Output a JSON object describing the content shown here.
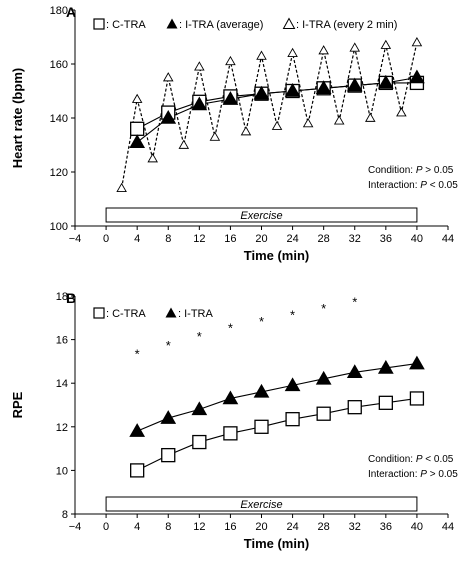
{
  "chart_data": [
    {
      "type": "line",
      "panel_label": "A",
      "xlabel": "Time (min)",
      "ylabel": "Heart rate (bpm)",
      "xlim": [
        -4,
        44
      ],
      "ylim": [
        100,
        180
      ],
      "x_ticks": [
        "−4",
        "0",
        "4",
        "8",
        "12",
        "16",
        "20",
        "24",
        "28",
        "32",
        "36",
        "40",
        "44"
      ],
      "y_ticks": [
        "100",
        "120",
        "140",
        "160",
        "180"
      ],
      "legend": [
        {
          "symbol": "□",
          "label": ": C-TRA"
        },
        {
          "symbol": "▲",
          "label": ": I-TRA (average)"
        },
        {
          "symbol": "△",
          "label": ": I-TRA (every 2 min)"
        }
      ],
      "series": [
        {
          "name": "C-TRA",
          "marker": "open-square",
          "x": [
            4,
            8,
            12,
            16,
            20,
            24,
            28,
            32,
            36,
            40
          ],
          "values": [
            136,
            142,
            146,
            148,
            149,
            150,
            151,
            152,
            153,
            153
          ]
        },
        {
          "name": "I-TRA (average)",
          "marker": "filled-triangle",
          "x": [
            4,
            8,
            12,
            16,
            20,
            24,
            28,
            32,
            36,
            40
          ],
          "values": [
            131,
            140,
            145,
            147,
            149,
            150,
            151,
            152,
            153,
            155
          ]
        },
        {
          "name": "I-TRA (every 2 min)",
          "marker": "open-triangle",
          "dashed": true,
          "x": [
            2,
            4,
            6,
            8,
            10,
            12,
            14,
            16,
            18,
            20,
            22,
            24,
            26,
            28,
            30,
            32,
            34,
            36,
            38,
            40
          ],
          "values": [
            114,
            147,
            125,
            155,
            130,
            159,
            133,
            161,
            135,
            163,
            137,
            164,
            138,
            165,
            139,
            166,
            140,
            167,
            142,
            168
          ]
        }
      ],
      "annotations": [
        "Condition: ",
        "P",
        " > 0.05",
        "Interaction: ",
        "P",
        " < 0.05"
      ],
      "exercise_bar": {
        "label": "Exercise",
        "x_start": 0,
        "x_end": 40
      }
    },
    {
      "type": "line",
      "panel_label": "B",
      "xlabel": "Time (min)",
      "ylabel": "RPE",
      "xlim": [
        -4,
        44
      ],
      "ylim": [
        8,
        18
      ],
      "x_ticks": [
        "−4",
        "0",
        "4",
        "8",
        "12",
        "16",
        "20",
        "24",
        "28",
        "32",
        "36",
        "40",
        "44"
      ],
      "y_ticks": [
        "8",
        "10",
        "12",
        "14",
        "16",
        "18"
      ],
      "legend": [
        {
          "symbol": "□",
          "label": ": C-TRA"
        },
        {
          "symbol": "▲",
          "label": ": I-TRA"
        }
      ],
      "series": [
        {
          "name": "C-TRA",
          "marker": "open-square",
          "x": [
            4,
            8,
            12,
            16,
            20,
            24,
            28,
            32,
            36,
            40
          ],
          "values": [
            10.0,
            10.7,
            11.3,
            11.7,
            12.0,
            12.35,
            12.6,
            12.9,
            13.1,
            13.3
          ]
        },
        {
          "name": "I-TRA",
          "marker": "filled-triangle",
          "x": [
            4,
            8,
            12,
            16,
            20,
            24,
            28,
            32,
            36,
            40
          ],
          "values": [
            11.8,
            12.4,
            12.8,
            13.3,
            13.6,
            13.9,
            14.2,
            14.5,
            14.7,
            14.9
          ]
        }
      ],
      "significance": {
        "symbol": "*",
        "x": [
          4,
          8,
          12,
          16,
          20,
          24,
          28,
          32
        ],
        "y": [
          15.4,
          15.8,
          16.2,
          16.6,
          16.9,
          17.2,
          17.5,
          17.8
        ]
      },
      "annotations": [
        "Condition: ",
        "P",
        " < 0.05",
        "Interaction: ",
        "P",
        " > 0.05"
      ],
      "exercise_bar": {
        "label": "Exercise",
        "x_start": 0,
        "x_end": 40
      }
    }
  ]
}
